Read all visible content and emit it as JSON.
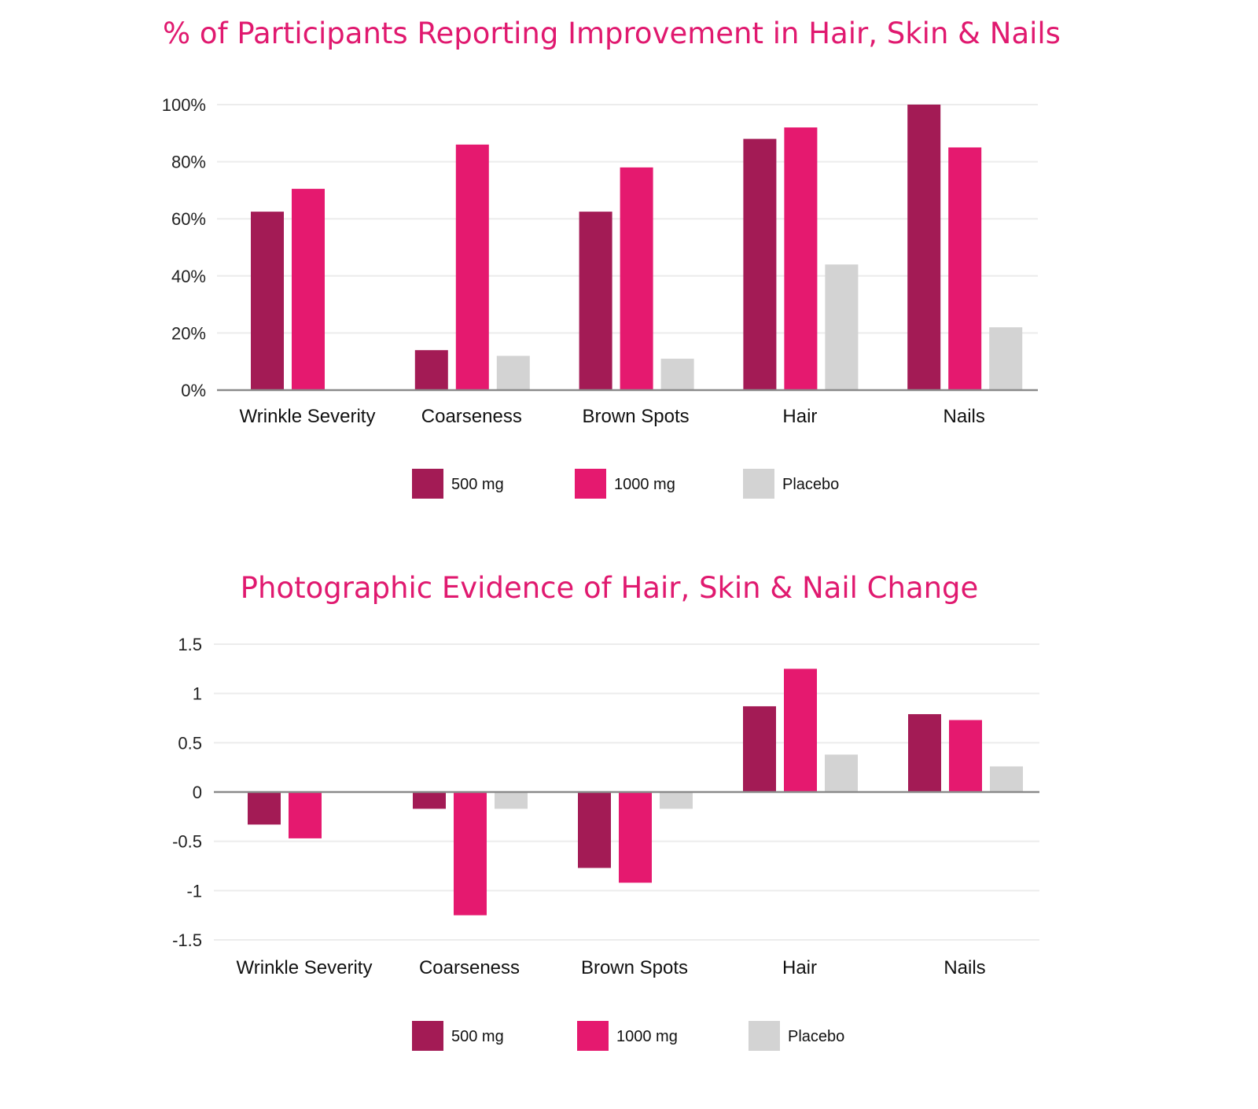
{
  "colors": {
    "500 mg": "#a31b55",
    "1000 mg": "#e5196f",
    "Placebo": "#d3d3d3",
    "title": "#e0196f"
  },
  "chart_data": [
    {
      "type": "bar",
      "title": "% of Participants Reporting Improvement in Hair, Skin & Nails",
      "categories": [
        "Wrinkle Severity",
        "Coarseness",
        "Brown Spots",
        "Hair",
        "Nails"
      ],
      "series": [
        {
          "name": "500 mg",
          "values": [
            62.5,
            14,
            62.5,
            88,
            100
          ]
        },
        {
          "name": "1000 mg",
          "values": [
            70.5,
            86,
            78,
            92,
            85
          ]
        },
        {
          "name": "Placebo",
          "values": [
            0,
            12,
            11,
            44,
            22
          ]
        }
      ],
      "yticks": [
        0,
        20,
        40,
        60,
        80,
        100
      ],
      "ytick_labels": [
        "0%",
        "20%",
        "40%",
        "60%",
        "80%",
        "100%"
      ],
      "ylim": [
        0,
        100
      ],
      "xlabel": "",
      "ylabel": "",
      "grid": true,
      "legend": [
        "500 mg",
        "1000 mg",
        "Placebo"
      ],
      "legend_position": "bottom-center"
    },
    {
      "type": "bar",
      "title": "Photographic Evidence of Hair, Skin & Nail Change",
      "categories": [
        "Wrinkle Severity",
        "Coarseness",
        "Brown Spots",
        "Hair",
        "Nails"
      ],
      "series": [
        {
          "name": "500 mg",
          "values": [
            -0.33,
            -0.17,
            -0.77,
            0.87,
            0.79
          ]
        },
        {
          "name": "1000 mg",
          "values": [
            -0.47,
            -1.25,
            -0.92,
            1.25,
            0.73
          ]
        },
        {
          "name": "Placebo",
          "values": [
            0,
            -0.17,
            -0.17,
            0.38,
            0.26
          ]
        }
      ],
      "yticks": [
        -1.5,
        -1,
        -0.5,
        0,
        0.5,
        1,
        1.5
      ],
      "ytick_labels": [
        "-1.5",
        "-1",
        "-0.5",
        "0",
        "0.5",
        "1",
        "1.5"
      ],
      "ylim": [
        -1.5,
        1.5
      ],
      "xlabel": "",
      "ylabel": "",
      "grid": true,
      "legend": [
        "500 mg",
        "1000 mg",
        "Placebo"
      ],
      "legend_position": "bottom-center"
    }
  ]
}
